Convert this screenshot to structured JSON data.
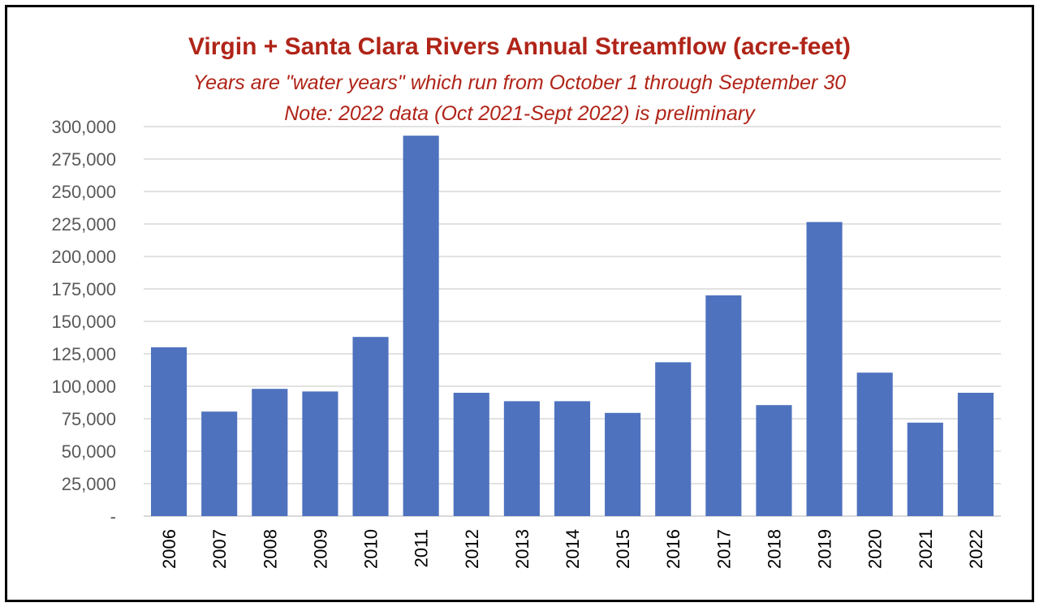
{
  "chart_data": {
    "type": "bar",
    "title": "Virgin + Santa Clara Rivers Annual  Streamflow (acre-feet)",
    "subtitle_lines": [
      "Years are \"water years\" which run from October 1 through September 30",
      "Note: 2022 data (Oct 2021-Sept 2022) is preliminary"
    ],
    "categories": [
      "2006",
      "2007",
      "2008",
      "2009",
      "2010",
      "2011",
      "2012",
      "2013",
      "2014",
      "2015",
      "2016",
      "2017",
      "2018",
      "2019",
      "2020",
      "2021",
      "2022"
    ],
    "values": [
      130000,
      80500,
      98000,
      96000,
      138000,
      293000,
      95000,
      88500,
      88500,
      79500,
      118500,
      170000,
      85500,
      226500,
      110500,
      72000,
      95000
    ],
    "ylim": [
      0,
      300000
    ],
    "yticks": [
      0,
      25000,
      50000,
      75000,
      100000,
      125000,
      150000,
      175000,
      200000,
      225000,
      250000,
      275000,
      300000
    ],
    "ytick_labels": [
      "-",
      "25,000",
      "50,000",
      "75,000",
      "100,000",
      "125,000",
      "150,000",
      "175,000",
      "200,000",
      "225,000",
      "250,000",
      "275,000",
      "300,000"
    ],
    "xlabel": "",
    "ylabel": "",
    "grid": "horizontal",
    "legend": "none",
    "colors": {
      "bar": "#4e72be",
      "grid": "#d9d9d9",
      "title": "#b02418",
      "ytick": "#595959",
      "xtick": "#000000"
    }
  }
}
